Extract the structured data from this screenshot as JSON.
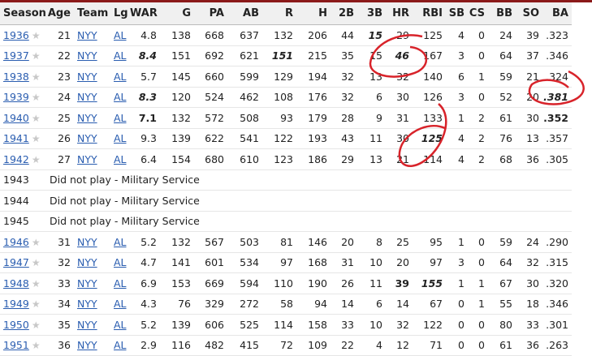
{
  "table": {
    "columns": [
      "Season",
      "Age",
      "Team",
      "Lg",
      "WAR",
      "G",
      "PA",
      "AB",
      "R",
      "H",
      "2B",
      "3B",
      "HR",
      "RBI",
      "SB",
      "CS",
      "BB",
      "SO",
      "BA"
    ],
    "rows": [
      {
        "cells": [
          "1936",
          "21",
          "NYY",
          "AL",
          "4.8",
          "138",
          "668",
          "637",
          "132",
          "206",
          "44",
          "15",
          "29",
          "125",
          "4",
          "0",
          "24",
          "39",
          ".323"
        ],
        "bold": [
          11
        ],
        "italic": [
          11
        ]
      },
      {
        "cells": [
          "1937",
          "22",
          "NYY",
          "AL",
          "8.4",
          "151",
          "692",
          "621",
          "151",
          "215",
          "35",
          "15",
          "46",
          "167",
          "3",
          "0",
          "64",
          "37",
          ".346"
        ],
        "bold": [
          4,
          8,
          12
        ],
        "italic": [
          4,
          8,
          12
        ]
      },
      {
        "cells": [
          "1938",
          "23",
          "NYY",
          "AL",
          "5.7",
          "145",
          "660",
          "599",
          "129",
          "194",
          "32",
          "13",
          "32",
          "140",
          "6",
          "1",
          "59",
          "21",
          ".324"
        ]
      },
      {
        "cells": [
          "1939",
          "24",
          "NYY",
          "AL",
          "8.3",
          "120",
          "524",
          "462",
          "108",
          "176",
          "32",
          "6",
          "30",
          "126",
          "3",
          "0",
          "52",
          "20",
          ".381"
        ],
        "bold": [
          4,
          18
        ],
        "italic": [
          4,
          18
        ]
      },
      {
        "cells": [
          "1940",
          "25",
          "NYY",
          "AL",
          "7.1",
          "132",
          "572",
          "508",
          "93",
          "179",
          "28",
          "9",
          "31",
          "133",
          "1",
          "2",
          "61",
          "30",
          ".352"
        ],
        "bold": [
          4,
          18
        ]
      },
      {
        "cells": [
          "1941",
          "26",
          "NYY",
          "AL",
          "9.3",
          "139",
          "622",
          "541",
          "122",
          "193",
          "43",
          "11",
          "30",
          "125",
          "4",
          "2",
          "76",
          "13",
          ".357"
        ],
        "bold": [
          13
        ],
        "italic": [
          13
        ]
      },
      {
        "cells": [
          "1942",
          "27",
          "NYY",
          "AL",
          "6.4",
          "154",
          "680",
          "610",
          "123",
          "186",
          "29",
          "13",
          "21",
          "114",
          "4",
          "2",
          "68",
          "36",
          ".305"
        ]
      },
      {
        "cells": [
          "1943",
          "Did not play - Military Service"
        ]
      },
      {
        "cells": [
          "1944",
          "Did not play - Military Service"
        ]
      },
      {
        "cells": [
          "1945",
          "Did not play - Military Service"
        ]
      },
      {
        "cells": [
          "1946",
          "31",
          "NYY",
          "AL",
          "5.2",
          "132",
          "567",
          "503",
          "81",
          "146",
          "20",
          "8",
          "25",
          "95",
          "1",
          "0",
          "59",
          "24",
          ".290"
        ]
      },
      {
        "cells": [
          "1947",
          "32",
          "NYY",
          "AL",
          "4.7",
          "141",
          "601",
          "534",
          "97",
          "168",
          "31",
          "10",
          "20",
          "97",
          "3",
          "0",
          "64",
          "32",
          ".315"
        ]
      },
      {
        "cells": [
          "1948",
          "33",
          "NYY",
          "AL",
          "6.9",
          "153",
          "669",
          "594",
          "110",
          "190",
          "26",
          "11",
          "39",
          "155",
          "1",
          "1",
          "67",
          "30",
          ".320"
        ],
        "bold": [
          12,
          13
        ],
        "italic": [
          13
        ]
      },
      {
        "cells": [
          "1949",
          "34",
          "NYY",
          "AL",
          "4.3",
          "76",
          "329",
          "272",
          "58",
          "94",
          "14",
          "6",
          "14",
          "67",
          "0",
          "1",
          "55",
          "18",
          ".346"
        ]
      },
      {
        "cells": [
          "1950",
          "35",
          "NYY",
          "AL",
          "5.2",
          "139",
          "606",
          "525",
          "114",
          "158",
          "33",
          "10",
          "32",
          "122",
          "0",
          "0",
          "80",
          "33",
          ".301"
        ]
      },
      {
        "cells": [
          "1951",
          "36",
          "NYY",
          "AL",
          "2.9",
          "116",
          "482",
          "415",
          "72",
          "109",
          "22",
          "4",
          "12",
          "71",
          "0",
          "0",
          "61",
          "36",
          ".263"
        ]
      }
    ]
  }
}
